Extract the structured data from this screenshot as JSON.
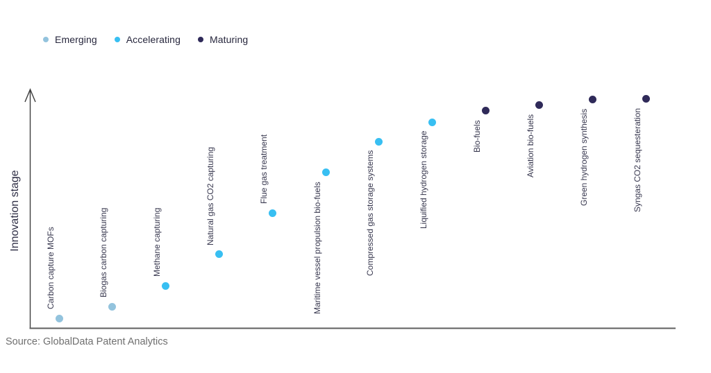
{
  "source": "Source: GlobalData Patent Analytics",
  "legend": {
    "items": [
      {
        "label": "Emerging",
        "color": "#93C3DD"
      },
      {
        "label": "Accelerating",
        "color": "#38BFF2"
      },
      {
        "label": "Maturing",
        "color": "#2F2A59"
      }
    ]
  },
  "chart_data": {
    "type": "scatter",
    "title": "",
    "xlabel": "",
    "ylabel": "Innovation stage",
    "ylim": [
      0,
      100
    ],
    "grid": false,
    "legend_position": "top-left",
    "x_axis_ticks": "none",
    "y_axis_ticks": "none",
    "stage_colors": {
      "Emerging": "#93C3DD",
      "Accelerating": "#38BFF2",
      "Maturing": "#2F2A59"
    },
    "points": [
      {
        "label": "Carbon capture MOFs",
        "stage": "Emerging",
        "stage_score": 4.1,
        "label_side": "above"
      },
      {
        "label": "Biogas carbon capturing",
        "stage": "Emerging",
        "stage_score": 9.1,
        "label_side": "above"
      },
      {
        "label": "Methane capturing",
        "stage": "Accelerating",
        "stage_score": 17.9,
        "label_side": "above"
      },
      {
        "label": "Natural gas CO2 capturing",
        "stage": "Accelerating",
        "stage_score": 31.3,
        "label_side": "above"
      },
      {
        "label": "Flue gas treatment",
        "stage": "Accelerating",
        "stage_score": 48.8,
        "label_side": "above"
      },
      {
        "label": "Maritime vessel propulsion bio-fuels",
        "stage": "Accelerating",
        "stage_score": 65.9,
        "label_side": "below"
      },
      {
        "label": "Compressed gas storage systems",
        "stage": "Accelerating",
        "stage_score": 79.0,
        "label_side": "below"
      },
      {
        "label": "Liquified hydrogen storage",
        "stage": "Accelerating",
        "stage_score": 87.3,
        "label_side": "below"
      },
      {
        "label": "Bio-fuels",
        "stage": "Maturing",
        "stage_score": 92.1,
        "label_side": "below"
      },
      {
        "label": "Aviation bio-fuels",
        "stage": "Maturing",
        "stage_score": 94.5,
        "label_side": "below"
      },
      {
        "label": "Green hydrogen synthesis",
        "stage": "Maturing",
        "stage_score": 96.8,
        "label_side": "below"
      },
      {
        "label": "Syngas CO2 sequesteration",
        "stage": "Maturing",
        "stage_score": 97.2,
        "label_side": "below"
      }
    ]
  }
}
